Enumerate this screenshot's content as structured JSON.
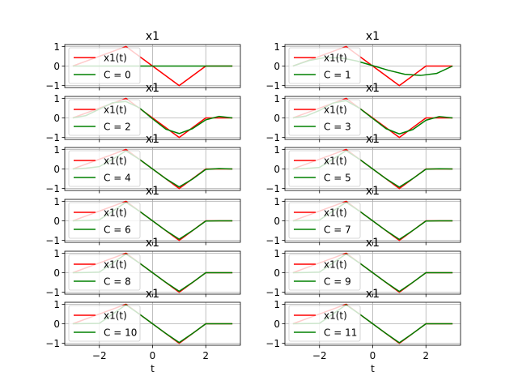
{
  "chart_data": [
    {
      "type": "line",
      "title": "x1",
      "xlabel": "",
      "legend": "upper-left",
      "grid": true,
      "xlim": [
        -3.3,
        3.3
      ],
      "ylim": [
        -1.1,
        1.1
      ],
      "yticks": [
        -1,
        0,
        1
      ],
      "xticks": [
        -2,
        0,
        2
      ],
      "series": [
        {
          "name": "x1(t)",
          "color": "#ff0000",
          "x": [
            -3,
            -1,
            1,
            2,
            3
          ],
          "y": [
            0,
            1,
            -1,
            0,
            0
          ]
        },
        {
          "name": "C = 0",
          "color": "#008000",
          "x": [
            -3,
            3
          ],
          "y": [
            0,
            0
          ]
        }
      ]
    },
    {
      "type": "line",
      "title": "x1",
      "xlabel": "",
      "legend": "upper-left",
      "grid": true,
      "xlim": [
        -3.3,
        3.3
      ],
      "ylim": [
        -1.1,
        1.1
      ],
      "yticks": [
        -1,
        0,
        1
      ],
      "xticks": [
        -2,
        0,
        2
      ],
      "series": [
        {
          "name": "x1(t)",
          "color": "#ff0000",
          "x": [
            -3,
            -1,
            1,
            2,
            3
          ],
          "y": [
            0,
            1,
            -1,
            0,
            0
          ]
        },
        {
          "name": "C = 1",
          "color": "#008000",
          "x": [
            -3,
            -2.4,
            -1.8,
            -1.2,
            -0.6,
            0,
            0.6,
            1.2,
            1.8,
            2.4,
            3
          ],
          "y": [
            0,
            0.28,
            0.43,
            0.42,
            0.26,
            0.02,
            -0.22,
            -0.42,
            -0.48,
            -0.38,
            0
          ]
        }
      ]
    },
    {
      "type": "line",
      "title": "x1",
      "xlabel": "",
      "legend": "upper-left",
      "grid": true,
      "xlim": [
        -3.3,
        3.3
      ],
      "ylim": [
        -1.1,
        1.1
      ],
      "yticks": [
        -1,
        0,
        1
      ],
      "xticks": [
        -2,
        0,
        2
      ],
      "series": [
        {
          "name": "x1(t)",
          "color": "#ff0000",
          "x": [
            -3,
            -1,
            1,
            2,
            3
          ],
          "y": [
            0,
            1,
            -1,
            0,
            0
          ]
        },
        {
          "name": "C = 2",
          "color": "#008000",
          "x": [
            -3,
            -2.5,
            -2,
            -1.5,
            -1,
            -0.5,
            0,
            0.5,
            1,
            1.5,
            2,
            2.5,
            3
          ],
          "y": [
            0,
            0.12,
            0.45,
            0.78,
            0.84,
            0.52,
            -0.05,
            -0.58,
            -0.8,
            -0.55,
            -0.1,
            0.08,
            0
          ]
        }
      ]
    },
    {
      "type": "line",
      "title": "x1",
      "xlabel": "",
      "legend": "upper-left",
      "grid": true,
      "xlim": [
        -3.3,
        3.3
      ],
      "ylim": [
        -1.1,
        1.1
      ],
      "yticks": [
        -1,
        0,
        1
      ],
      "xticks": [
        -2,
        0,
        2
      ],
      "series": [
        {
          "name": "x1(t)",
          "color": "#ff0000",
          "x": [
            -3,
            -1,
            1,
            2,
            3
          ],
          "y": [
            0,
            1,
            -1,
            0,
            0
          ]
        },
        {
          "name": "C = 3",
          "color": "#008000",
          "x": [
            -3,
            -2.5,
            -2,
            -1.5,
            -1,
            -0.5,
            0,
            0.5,
            1,
            1.5,
            2,
            2.5,
            3
          ],
          "y": [
            0,
            0.1,
            0.38,
            0.76,
            0.88,
            0.5,
            -0.03,
            -0.55,
            -0.82,
            -0.6,
            -0.12,
            0.07,
            0
          ]
        }
      ]
    },
    {
      "type": "line",
      "title": "x1",
      "xlabel": "",
      "legend": "upper-left",
      "grid": true,
      "xlim": [
        -3.3,
        3.3
      ],
      "ylim": [
        -1.1,
        1.1
      ],
      "yticks": [
        -1,
        0,
        1
      ],
      "xticks": [
        -2,
        0,
        2
      ],
      "series": [
        {
          "name": "x1(t)",
          "color": "#ff0000",
          "x": [
            -3,
            -1,
            1,
            2,
            3
          ],
          "y": [
            0,
            1,
            -1,
            0,
            0
          ]
        },
        {
          "name": "C = 4",
          "color": "#008000",
          "x": [
            -3,
            -2.5,
            -2,
            -1.5,
            -1,
            -0.5,
            0,
            0.5,
            1,
            1.5,
            2,
            2.5,
            3
          ],
          "y": [
            0,
            0.04,
            0.12,
            0.5,
            0.93,
            0.5,
            0.0,
            -0.5,
            -0.92,
            -0.52,
            -0.02,
            0.02,
            0
          ]
        }
      ]
    },
    {
      "type": "line",
      "title": "x1",
      "xlabel": "",
      "legend": "upper-left",
      "grid": true,
      "xlim": [
        -3.3,
        3.3
      ],
      "ylim": [
        -1.1,
        1.1
      ],
      "yticks": [
        -1,
        0,
        1
      ],
      "xticks": [
        -2,
        0,
        2
      ],
      "series": [
        {
          "name": "x1(t)",
          "color": "#ff0000",
          "x": [
            -3,
            -1,
            1,
            2,
            3
          ],
          "y": [
            0,
            1,
            -1,
            0,
            0
          ]
        },
        {
          "name": "C = 5",
          "color": "#008000",
          "x": [
            -3,
            -2.5,
            -2,
            -1.5,
            -1,
            -0.5,
            0,
            0.5,
            1,
            1.5,
            2,
            2.5,
            3
          ],
          "y": [
            0,
            0.03,
            0.08,
            0.5,
            0.94,
            0.5,
            0.0,
            -0.5,
            -0.93,
            -0.5,
            -0.01,
            0.01,
            0
          ]
        }
      ]
    },
    {
      "type": "line",
      "title": "x1",
      "xlabel": "",
      "legend": "upper-left",
      "grid": true,
      "xlim": [
        -3.3,
        3.3
      ],
      "ylim": [
        -1.1,
        1.1
      ],
      "yticks": [
        -1,
        0,
        1
      ],
      "xticks": [
        -2,
        0,
        2
      ],
      "series": [
        {
          "name": "x1(t)",
          "color": "#ff0000",
          "x": [
            -3,
            -1,
            1,
            2,
            3
          ],
          "y": [
            0,
            1,
            -1,
            0,
            0
          ]
        },
        {
          "name": "C = 6",
          "color": "#008000",
          "x": [
            -3,
            -2.5,
            -2,
            -1.5,
            -1,
            -0.5,
            0,
            0.5,
            1,
            1.5,
            2,
            2.5,
            3
          ],
          "y": [
            0,
            0.02,
            0.05,
            0.5,
            0.95,
            0.5,
            0.0,
            -0.5,
            -0.94,
            -0.5,
            -0.01,
            0.0,
            0
          ]
        }
      ]
    },
    {
      "type": "line",
      "title": "x1",
      "xlabel": "",
      "legend": "upper-left",
      "grid": true,
      "xlim": [
        -3.3,
        3.3
      ],
      "ylim": [
        -1.1,
        1.1
      ],
      "yticks": [
        -1,
        0,
        1
      ],
      "xticks": [
        -2,
        0,
        2
      ],
      "series": [
        {
          "name": "x1(t)",
          "color": "#ff0000",
          "x": [
            -3,
            -1,
            1,
            2,
            3
          ],
          "y": [
            0,
            1,
            -1,
            0,
            0
          ]
        },
        {
          "name": "C = 7",
          "color": "#008000",
          "x": [
            -3,
            -2.5,
            -2,
            -1.5,
            -1,
            -0.5,
            0,
            0.5,
            1,
            1.5,
            2,
            2.5,
            3
          ],
          "y": [
            0,
            0.02,
            0.04,
            0.5,
            0.95,
            0.5,
            0.0,
            -0.5,
            -0.95,
            -0.5,
            -0.01,
            0.0,
            0
          ]
        }
      ]
    },
    {
      "type": "line",
      "title": "x1",
      "xlabel": "",
      "legend": "upper-left",
      "grid": true,
      "xlim": [
        -3.3,
        3.3
      ],
      "ylim": [
        -1.1,
        1.1
      ],
      "yticks": [
        -1,
        0,
        1
      ],
      "xticks": [
        -2,
        0,
        2
      ],
      "series": [
        {
          "name": "x1(t)",
          "color": "#ff0000",
          "x": [
            -3,
            -1,
            1,
            2,
            3
          ],
          "y": [
            0,
            1,
            -1,
            0,
            0
          ]
        },
        {
          "name": "C = 8",
          "color": "#008000",
          "x": [
            -3,
            -2.5,
            -2,
            -1.5,
            -1,
            -0.5,
            0,
            0.5,
            1,
            1.5,
            2,
            2.5,
            3
          ],
          "y": [
            0,
            0.01,
            0.03,
            0.5,
            0.96,
            0.5,
            0.0,
            -0.5,
            -0.95,
            -0.5,
            0.0,
            0.0,
            0
          ]
        }
      ]
    },
    {
      "type": "line",
      "title": "x1",
      "xlabel": "",
      "legend": "upper-left",
      "grid": true,
      "xlim": [
        -3.3,
        3.3
      ],
      "ylim": [
        -1.1,
        1.1
      ],
      "yticks": [
        -1,
        0,
        1
      ],
      "xticks": [
        -2,
        0,
        2
      ],
      "series": [
        {
          "name": "x1(t)",
          "color": "#ff0000",
          "x": [
            -3,
            -1,
            1,
            2,
            3
          ],
          "y": [
            0,
            1,
            -1,
            0,
            0
          ]
        },
        {
          "name": "C = 9",
          "color": "#008000",
          "x": [
            -3,
            -2.5,
            -2,
            -1.5,
            -1,
            -0.5,
            0,
            0.5,
            1,
            1.5,
            2,
            2.5,
            3
          ],
          "y": [
            0,
            0.01,
            0.03,
            0.5,
            0.96,
            0.5,
            0.0,
            -0.5,
            -0.96,
            -0.5,
            0.0,
            0.0,
            0
          ]
        }
      ]
    },
    {
      "type": "line",
      "title": "x1",
      "xlabel": "t",
      "legend": "upper-left",
      "grid": true,
      "xlim": [
        -3.3,
        3.3
      ],
      "ylim": [
        -1.1,
        1.1
      ],
      "yticks": [
        -1,
        0,
        1
      ],
      "xticks": [
        -2,
        0,
        2
      ],
      "series": [
        {
          "name": "x1(t)",
          "color": "#ff0000",
          "x": [
            -3,
            -1,
            1,
            2,
            3
          ],
          "y": [
            0,
            1,
            -1,
            0,
            0
          ]
        },
        {
          "name": "C = 10",
          "color": "#008000",
          "x": [
            -3,
            -2.5,
            -2,
            -1.5,
            -1,
            -0.5,
            0,
            0.5,
            1,
            1.5,
            2,
            2.5,
            3
          ],
          "y": [
            0,
            0.01,
            0.02,
            0.5,
            0.97,
            0.5,
            0.0,
            -0.5,
            -0.96,
            -0.5,
            0.0,
            0.0,
            0
          ]
        }
      ]
    },
    {
      "type": "line",
      "title": "x1",
      "xlabel": "t",
      "legend": "upper-left",
      "grid": true,
      "xlim": [
        -3.3,
        3.3
      ],
      "ylim": [
        -1.1,
        1.1
      ],
      "yticks": [
        -1,
        0,
        1
      ],
      "xticks": [
        -2,
        0,
        2
      ],
      "series": [
        {
          "name": "x1(t)",
          "color": "#ff0000",
          "x": [
            -3,
            -1,
            1,
            2,
            3
          ],
          "y": [
            0,
            1,
            -1,
            0,
            0
          ]
        },
        {
          "name": "C = 11",
          "color": "#008000",
          "x": [
            -3,
            -2.5,
            -2,
            -1.5,
            -1,
            -0.5,
            0,
            0.5,
            1,
            1.5,
            2,
            2.5,
            3
          ],
          "y": [
            0,
            0.01,
            0.02,
            0.5,
            0.97,
            0.5,
            0.0,
            -0.5,
            -0.97,
            -0.5,
            0.0,
            0.0,
            0
          ]
        }
      ]
    }
  ]
}
